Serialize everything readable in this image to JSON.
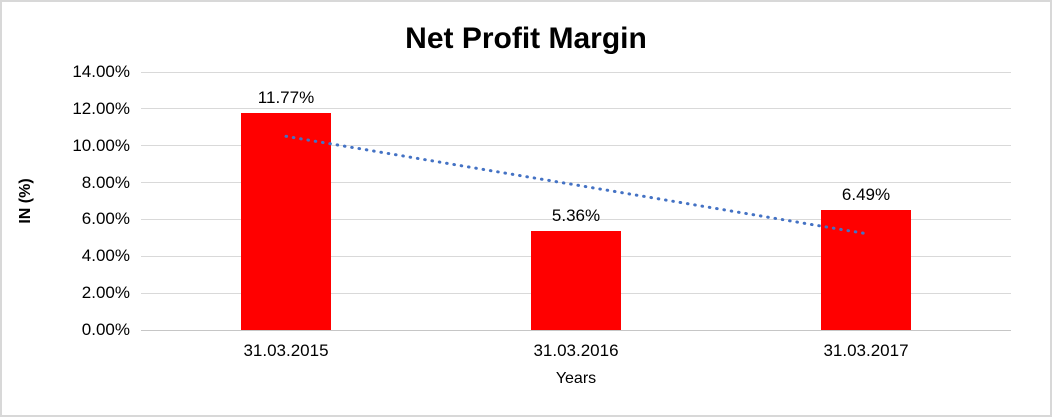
{
  "window": {
    "background": "#ffffff",
    "border_color": "#d8d8d8"
  },
  "chart_data": {
    "type": "bar",
    "title": "Net Profit Margin",
    "categories": [
      "31.03.2015",
      "31.03.2016",
      "31.03.2017"
    ],
    "values": [
      11.77,
      5.36,
      6.49
    ],
    "data_labels": [
      "11.77%",
      "5.36%",
      "6.49%"
    ],
    "xlabel": "Years",
    "ylabel": "IN (%)",
    "ylim": [
      0,
      14
    ],
    "ytick_step": 2,
    "ytick_labels": [
      "0.00%",
      "2.00%",
      "4.00%",
      "6.00%",
      "8.00%",
      "10.00%",
      "12.00%",
      "14.00%"
    ],
    "grid": true,
    "legend": "none",
    "bar_color": "#ff0000",
    "gridline_color": "#d9d9d9",
    "text_color": "#000000",
    "trendline": {
      "type": "linear",
      "style": "dotted",
      "color": "#4472c4",
      "start_value": 10.51,
      "end_value": 5.23
    }
  }
}
